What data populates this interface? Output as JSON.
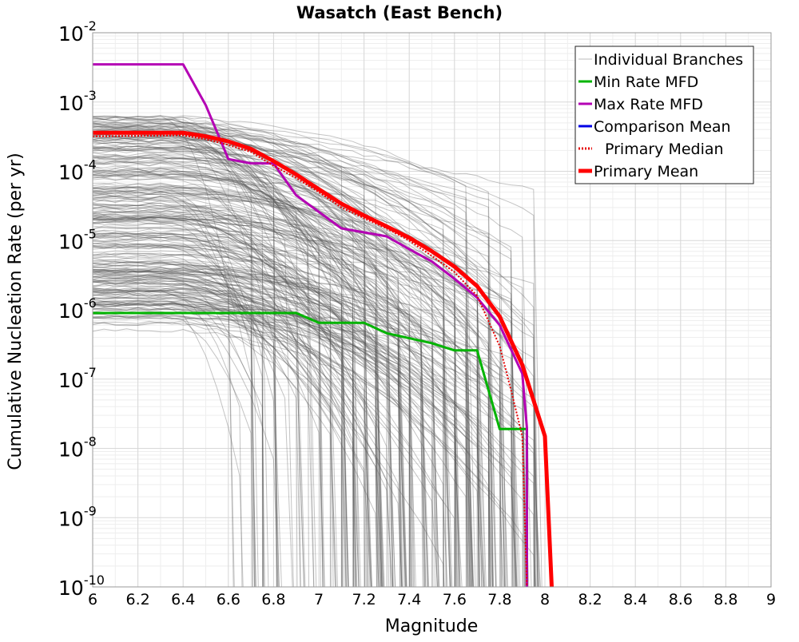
{
  "chart_data": {
    "type": "line",
    "title": "Wasatch (East Bench)",
    "xlabel": "Magnitude",
    "ylabel": "Cumulative Nucleation Rate (per yr)",
    "xlim": [
      6,
      9
    ],
    "ylim": [
      1e-10,
      0.01
    ],
    "yscale": "log",
    "grid": true,
    "legend_position": "top-right",
    "x_ticks": [
      "6",
      "6.2",
      "6.4",
      "6.6",
      "6.8",
      "7",
      "7.2",
      "7.4",
      "7.6",
      "7.8",
      "8",
      "8.2",
      "8.4",
      "8.6",
      "8.8",
      "9"
    ],
    "y_ticks": [
      {
        "value": 0.01,
        "base": "10",
        "exp": "-2"
      },
      {
        "value": 0.001,
        "base": "10",
        "exp": "-3"
      },
      {
        "value": 0.0001,
        "base": "10",
        "exp": "-4"
      },
      {
        "value": 1e-05,
        "base": "10",
        "exp": "-5"
      },
      {
        "value": 1e-06,
        "base": "10",
        "exp": "-6"
      },
      {
        "value": 1e-07,
        "base": "10",
        "exp": "-7"
      },
      {
        "value": 1e-08,
        "base": "10",
        "exp": "-8"
      },
      {
        "value": 1e-09,
        "base": "10",
        "exp": "-9"
      },
      {
        "value": 1e-10,
        "base": "10",
        "exp": "-10"
      }
    ],
    "series": [
      {
        "name": "Min Rate MFD",
        "color": "#00b400",
        "style": "solid",
        "x": [
          6.0,
          6.9,
          7.0,
          7.2,
          7.3,
          7.5,
          7.6,
          7.7,
          7.8,
          7.9,
          7.92,
          7.92
        ],
        "y": [
          9e-07,
          9e-07,
          6.5e-07,
          6.5e-07,
          4.6e-07,
          3.3e-07,
          2.6e-07,
          2.6e-07,
          1.9e-08,
          1.9e-08,
          1.9e-08,
          1e-10
        ]
      },
      {
        "name": "Max Rate MFD",
        "color": "#b400b4",
        "style": "solid",
        "x": [
          6.0,
          6.4,
          6.5,
          6.6,
          6.7,
          6.8,
          6.9,
          7.0,
          7.1,
          7.3,
          7.4,
          7.5,
          7.6,
          7.7,
          7.8,
          7.9,
          7.92,
          7.92
        ],
        "y": [
          0.0035,
          0.0035,
          0.0009,
          0.00015,
          0.00013,
          0.00013,
          4.5e-05,
          2.6e-05,
          1.5e-05,
          1.15e-05,
          7.5e-06,
          5e-06,
          2.8e-06,
          1.5e-06,
          6e-07,
          1.2e-07,
          2e-08,
          1e-10
        ]
      },
      {
        "name": "Comparison Mean",
        "color": "#0000e6",
        "style": "solid",
        "x": [],
        "y": []
      },
      {
        "name": "Primary Median",
        "color": "#e60000",
        "style": "dotted",
        "x": [
          6.0,
          6.4,
          6.5,
          6.6,
          6.7,
          6.8,
          6.9,
          7.0,
          7.1,
          7.2,
          7.3,
          7.4,
          7.5,
          7.6,
          7.7,
          7.8,
          7.85,
          7.9,
          7.92
        ],
        "y": [
          0.00032,
          0.00033,
          0.00029,
          0.00024,
          0.00019,
          0.00012,
          8e-05,
          5e-05,
          3e-05,
          2.1e-05,
          1.5e-05,
          1e-05,
          6e-06,
          3.5e-06,
          1.6e-06,
          3e-07,
          7e-08,
          1.5e-08,
          1e-10
        ]
      },
      {
        "name": "Primary Mean",
        "color": "#ff0000",
        "style": "solid",
        "x": [
          6.0,
          6.4,
          6.5,
          6.6,
          6.7,
          6.8,
          6.9,
          7.0,
          7.1,
          7.2,
          7.3,
          7.4,
          7.5,
          7.6,
          7.7,
          7.8,
          7.9,
          8.0,
          8.03
        ],
        "y": [
          0.00036,
          0.00036,
          0.00032,
          0.00027,
          0.00021,
          0.00014,
          9e-05,
          5.5e-05,
          3.4e-05,
          2.3e-05,
          1.6e-05,
          1.1e-05,
          7e-06,
          4.2e-06,
          2.2e-06,
          8e-07,
          1.6e-07,
          1.5e-08,
          1e-10
        ]
      }
    ],
    "background_branches": {
      "name": "Individual Branches",
      "color": "#555555",
      "count": 300
    }
  }
}
